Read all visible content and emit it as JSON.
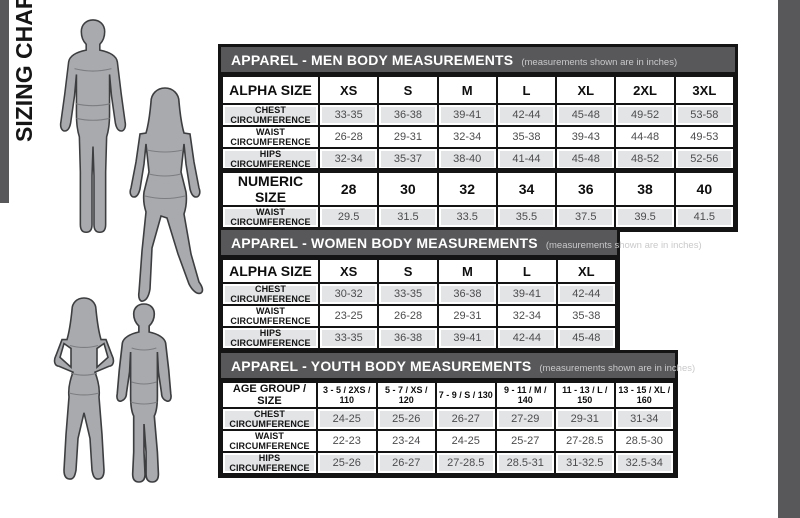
{
  "sidebar": {
    "title": "SIZING CHART"
  },
  "figures": [
    "man-silhouette",
    "woman-silhouette",
    "girl-silhouette",
    "boy-silhouette"
  ],
  "colors": {
    "accent_gray": "#58585a",
    "border_black": "#141414",
    "row_shade": "#e3e4e6",
    "value_text": "#4c4c4e",
    "silhouette_fill": "#a8aaad"
  },
  "tables": {
    "men": {
      "title": "APPAREL - MEN BODY MEASUREMENTS",
      "subtitle": "(measurements shown are in inches)",
      "header_label": "ALPHA SIZE",
      "columns": [
        "XS",
        "S",
        "M",
        "L",
        "XL",
        "2XL",
        "3XL"
      ],
      "rows": [
        {
          "label": "CHEST CIRCUMFERENCE",
          "values": [
            "33-35",
            "36-38",
            "39-41",
            "42-44",
            "45-48",
            "49-52",
            "53-58"
          ]
        },
        {
          "label": "WAIST CIRCUMFERENCE",
          "values": [
            "26-28",
            "29-31",
            "32-34",
            "35-38",
            "39-43",
            "44-48",
            "49-53"
          ]
        },
        {
          "label": "HIPS CIRCUMFERENCE",
          "values": [
            "32-34",
            "35-37",
            "38-40",
            "41-44",
            "45-48",
            "48-52",
            "52-56"
          ]
        }
      ]
    },
    "men_numeric": {
      "header_label": "NUMERIC SIZE",
      "columns": [
        "28",
        "30",
        "32",
        "34",
        "36",
        "38",
        "40"
      ],
      "rows": [
        {
          "label": "WAIST CIRCUMFERENCE",
          "values": [
            "29.5",
            "31.5",
            "33.5",
            "35.5",
            "37.5",
            "39.5",
            "41.5"
          ]
        }
      ]
    },
    "women": {
      "title": "APPAREL - WOMEN BODY MEASUREMENTS",
      "subtitle": "(measurements shown are in inches)",
      "header_label": "ALPHA SIZE",
      "columns": [
        "XS",
        "S",
        "M",
        "L",
        "XL"
      ],
      "rows": [
        {
          "label": "CHEST CIRCUMFERENCE",
          "values": [
            "30-32",
            "33-35",
            "36-38",
            "39-41",
            "42-44"
          ]
        },
        {
          "label": "WAIST CIRCUMFERENCE",
          "values": [
            "23-25",
            "26-28",
            "29-31",
            "32-34",
            "35-38"
          ]
        },
        {
          "label": "HIPS CIRCUMFERENCE",
          "values": [
            "33-35",
            "36-38",
            "39-41",
            "42-44",
            "45-48"
          ]
        }
      ]
    },
    "youth": {
      "title": "APPAREL - YOUTH BODY MEASUREMENTS",
      "subtitle": "(measurements shown are in inches)",
      "header_label": "AGE GROUP / SIZE",
      "columns": [
        "3 - 5 / 2XS / 110",
        "5 - 7 / XS / 120",
        "7 - 9 / S / 130",
        "9 - 11 / M / 140",
        "11 - 13 / L / 150",
        "13 - 15 / XL / 160"
      ],
      "rows": [
        {
          "label": "CHEST CIRCUMFERENCE",
          "values": [
            "24-25",
            "25-26",
            "26-27",
            "27-29",
            "29-31",
            "31-34"
          ]
        },
        {
          "label": "WAIST CIRCUMFERENCE",
          "values": [
            "22-23",
            "23-24",
            "24-25",
            "25-27",
            "27-28.5",
            "28.5-30"
          ]
        },
        {
          "label": "HIPS CIRCUMFERENCE",
          "values": [
            "25-26",
            "26-27",
            "27-28.5",
            "28.5-31",
            "31-32.5",
            "32.5-34"
          ]
        }
      ]
    }
  }
}
